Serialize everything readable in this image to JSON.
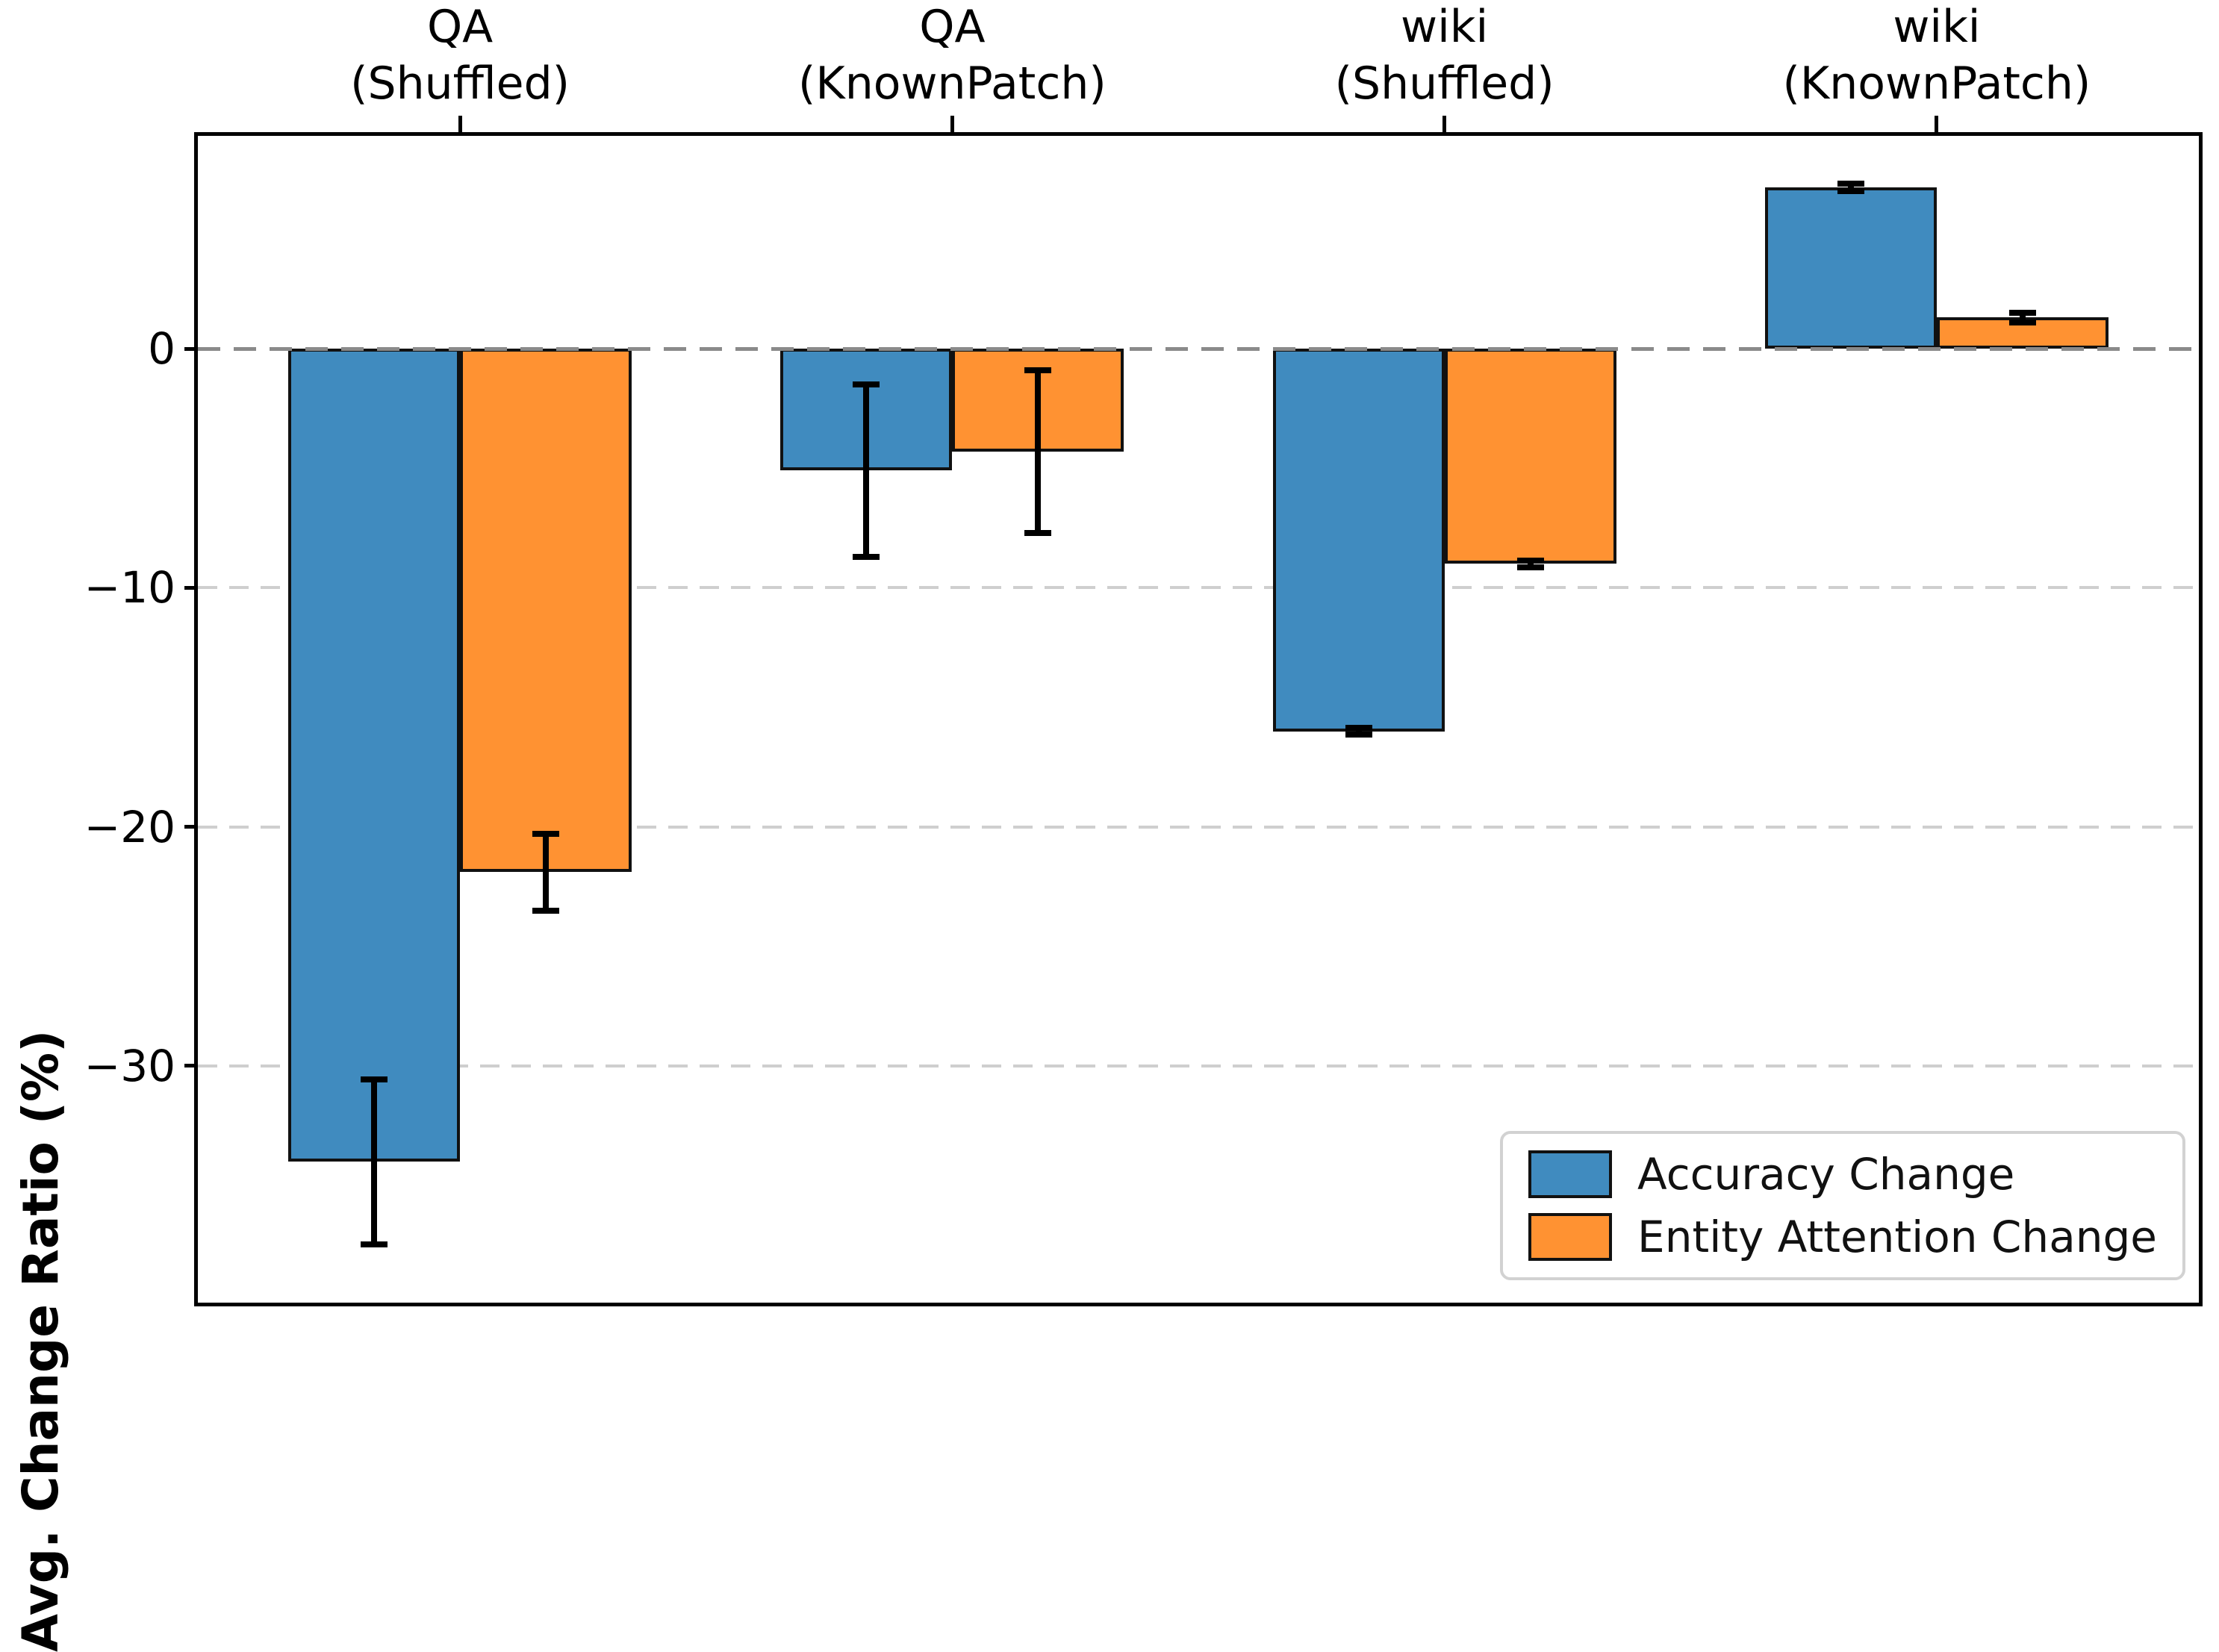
{
  "chart_data": {
    "type": "bar",
    "title": "",
    "ylabel": "Avg. Change Ratio (%)",
    "ylim": [
      -39.9,
      8.9
    ],
    "grid": "horizontal-dashed",
    "legend_position": "lower-right",
    "categories": [
      {
        "line1": "QA",
        "line2": "(Shuffled)"
      },
      {
        "line1": "QA",
        "line2": "(KnownPatch)"
      },
      {
        "line1": "wiki",
        "line2": "(Shuffled)"
      },
      {
        "line1": "wiki",
        "line2": "(KnownPatch)"
      }
    ],
    "yticks": [
      {
        "value": 0,
        "label": "0"
      },
      {
        "value": -10,
        "label": "−10"
      },
      {
        "value": -20,
        "label": "−20"
      },
      {
        "value": -30,
        "label": "−30"
      }
    ],
    "series": [
      {
        "name": "Accuracy Change",
        "color": "#408bbf",
        "values": [
          -34.0,
          -5.1,
          -16.0,
          6.75
        ],
        "errors": [
          3.45,
          3.6,
          0.15,
          0.15
        ]
      },
      {
        "name": "Entity Attention Change",
        "color": "#ff9232",
        "values": [
          -21.9,
          -4.3,
          -9.0,
          1.3
        ],
        "errors": [
          1.6,
          3.4,
          0.15,
          0.2
        ]
      }
    ],
    "colors": {
      "bar_edge": "#111111",
      "zero_gridline": "#8a8a8a",
      "gridline": "#cfcfcf",
      "axes_border": "#000000",
      "legend_border": "#d2d2d2"
    }
  }
}
